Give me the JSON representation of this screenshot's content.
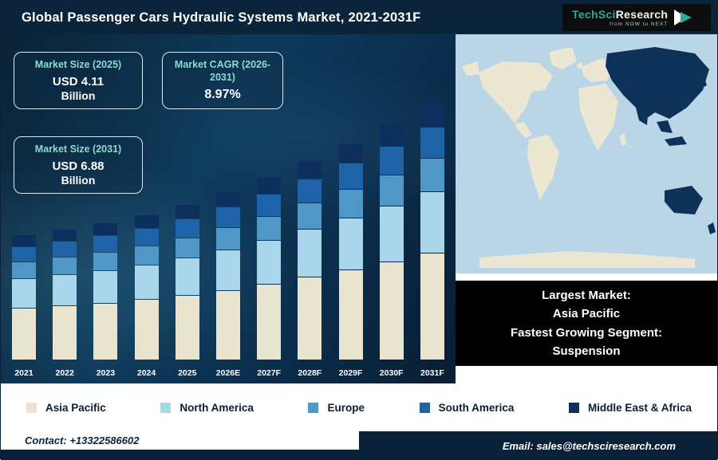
{
  "header": {
    "title": "Global Passenger Cars Hydraulic Systems Market, 2021-2031F",
    "logo": {
      "brand_primary": "TechSci",
      "brand_secondary": "Research",
      "tagline": "from NOW to NEXT"
    }
  },
  "info_cards": {
    "size_2025": {
      "label": "Market Size (2025)",
      "value": "USD 4.11",
      "unit": "Billion"
    },
    "cagr": {
      "label": "Market CAGR (2026-2031)",
      "value": "8.97%"
    },
    "size_2031": {
      "label": "Market Size (2031)",
      "value": "USD 6.88",
      "unit": "Billion"
    }
  },
  "chart_data": {
    "type": "bar",
    "stacked": true,
    "title": "Global Passenger Cars Hydraulic Systems Market, 2021-2031F",
    "unit": "USD Billion",
    "categories": [
      "2021",
      "2022",
      "2023",
      "2024",
      "2025",
      "2026E",
      "2027F",
      "2028F",
      "2029F",
      "2030F",
      "2031F"
    ],
    "series": [
      {
        "name": "Asia Pacific",
        "color": "#e9e4cf",
        "values": [
          1.39,
          1.45,
          1.52,
          1.62,
          1.73,
          1.88,
          2.05,
          2.23,
          2.43,
          2.65,
          2.89
        ]
      },
      {
        "name": "North America",
        "color": "#a9d6ea",
        "values": [
          0.79,
          0.83,
          0.87,
          0.92,
          0.99,
          1.08,
          1.17,
          1.28,
          1.39,
          1.51,
          1.65
        ]
      },
      {
        "name": "Europe",
        "color": "#4f97c7",
        "values": [
          0.43,
          0.45,
          0.47,
          0.5,
          0.53,
          0.58,
          0.63,
          0.69,
          0.75,
          0.82,
          0.89
        ]
      },
      {
        "name": "South America",
        "color": "#1e62a8",
        "values": [
          0.4,
          0.41,
          0.43,
          0.46,
          0.49,
          0.54,
          0.59,
          0.64,
          0.69,
          0.76,
          0.83
        ]
      },
      {
        "name": "Middle East & Africa",
        "color": "#0d2f5e",
        "values": [
          0.3,
          0.31,
          0.33,
          0.35,
          0.37,
          0.4,
          0.44,
          0.48,
          0.52,
          0.57,
          0.62
        ]
      }
    ],
    "totals": [
      3.3,
      3.45,
      3.62,
      3.85,
      4.11,
      4.48,
      4.88,
      5.32,
      5.79,
      6.31,
      6.88
    ],
    "annotations": {
      "market_size_2025_usd_billion": 4.11,
      "market_size_2031_usd_billion": 6.88,
      "cagr_2026_2031_percent": 8.97
    },
    "legend_position": "bottom",
    "grid": false,
    "xlabel": "",
    "ylabel": ""
  },
  "map_panel": {
    "lines": [
      "Largest Market:",
      "Asia Pacific",
      "Fastest Growing Segment:",
      "Suspension"
    ],
    "highlight_color": "#0e3257",
    "land_color": "#ece7d2",
    "ocean_color": "#bad6e6"
  },
  "legend": [
    {
      "label": "Asia Pacific",
      "color": "#e9e4cf"
    },
    {
      "label": "North America",
      "color": "#a9d6ea"
    },
    {
      "label": "Europe",
      "color": "#4f97c7"
    },
    {
      "label": "South America",
      "color": "#1e62a8"
    },
    {
      "label": "Middle East & Africa",
      "color": "#0d2f5e"
    }
  ],
  "footer": {
    "contact": "Contact: +13322586602",
    "email": "Email: sales@techsciresearch.com"
  },
  "colors": {
    "header_bg": "#0a2439",
    "chart_bg_dark": "#0a2336",
    "accent_teal": "#2fa79b",
    "card_label": "#8fd9d4"
  }
}
